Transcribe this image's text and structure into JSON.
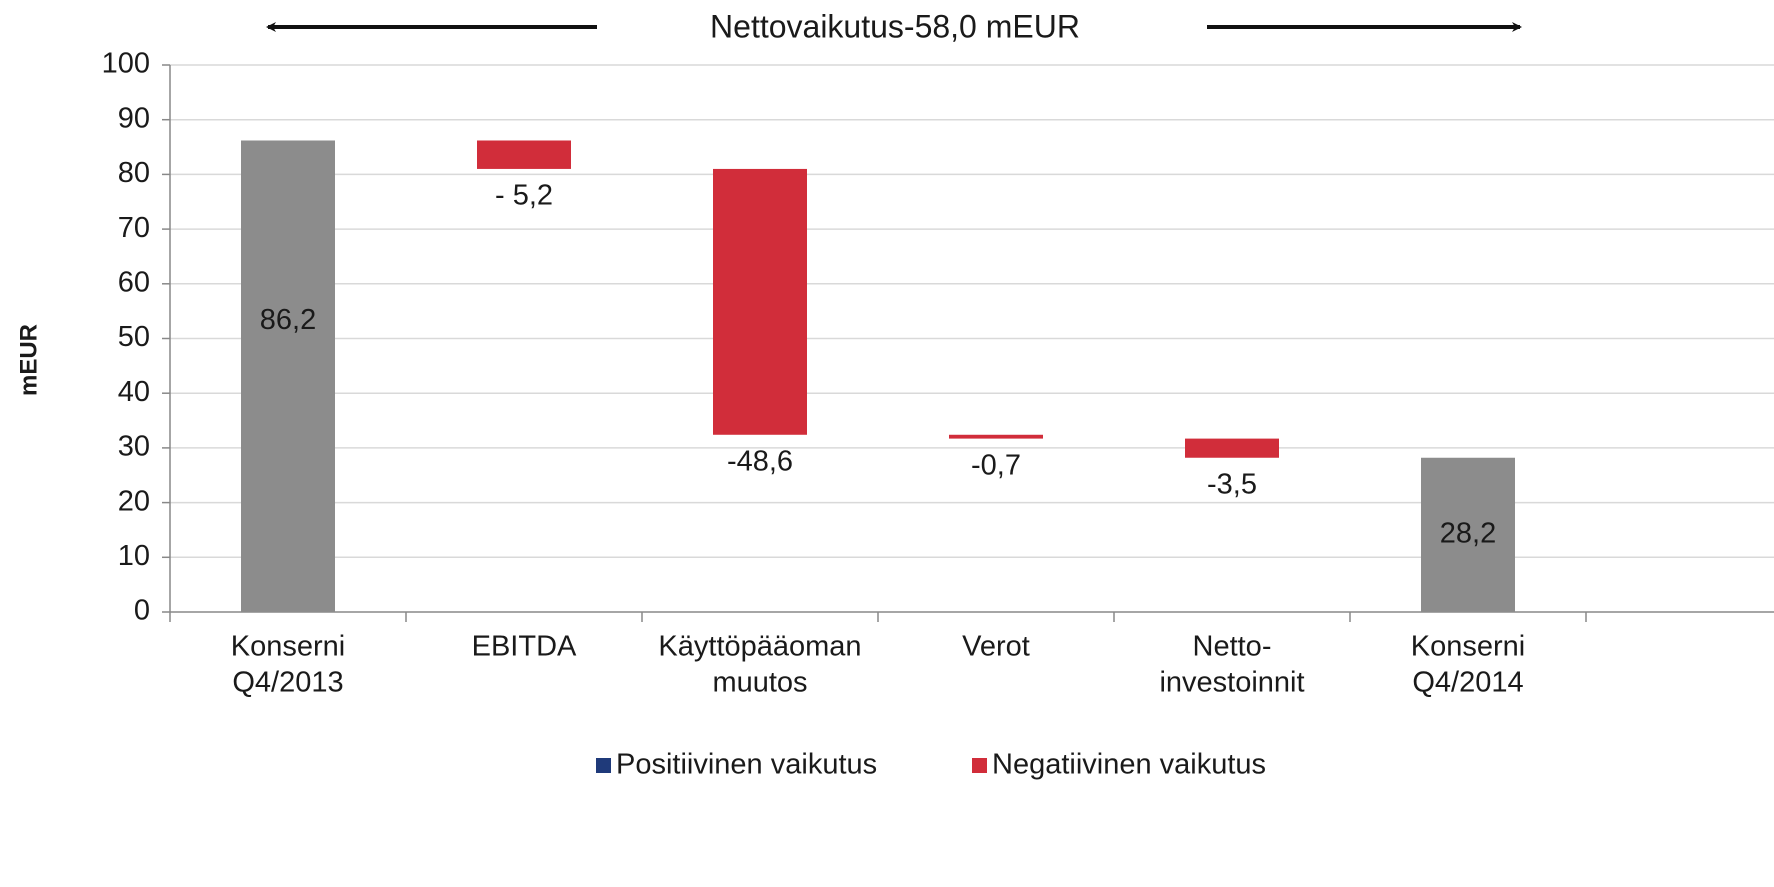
{
  "chart_data": {
    "type": "waterfall",
    "title": "Nettovaikutus-58,0 mEUR",
    "y_label": "mEUR",
    "categories": [
      [
        "Konserni",
        "Q4/2013"
      ],
      [
        "EBITDA"
      ],
      [
        "Käyttöpääoman",
        "muutos"
      ],
      [
        "Verot"
      ],
      [
        "Netto-",
        "investoinnit"
      ],
      [
        "Konserni",
        "Q4/2014"
      ]
    ],
    "measure": [
      "absolute",
      "relative",
      "relative",
      "relative",
      "relative",
      "total"
    ],
    "values": [
      86.2,
      -5.2,
      -48.6,
      -0.7,
      -3.5,
      28.2
    ],
    "value_labels": [
      "86,2",
      "- 5,2",
      "-48,6",
      "-0,7",
      "-3,5",
      "28,2"
    ],
    "colors": [
      "#8c8c8c",
      "#d12d3a",
      "#d12d3a",
      "#d12d3a",
      "#d12d3a",
      "#8c8c8c"
    ],
    "legend": [
      {
        "name": "Positiivinen vaikutus",
        "color": "#1f3a7a"
      },
      {
        "name": "Negatiivinen vaikutus",
        "color": "#d12d3a"
      }
    ],
    "ylim": [
      0,
      100
    ],
    "yticks": [
      0,
      10,
      20,
      30,
      40,
      50,
      60,
      70,
      80,
      90,
      100
    ],
    "grid": true
  }
}
